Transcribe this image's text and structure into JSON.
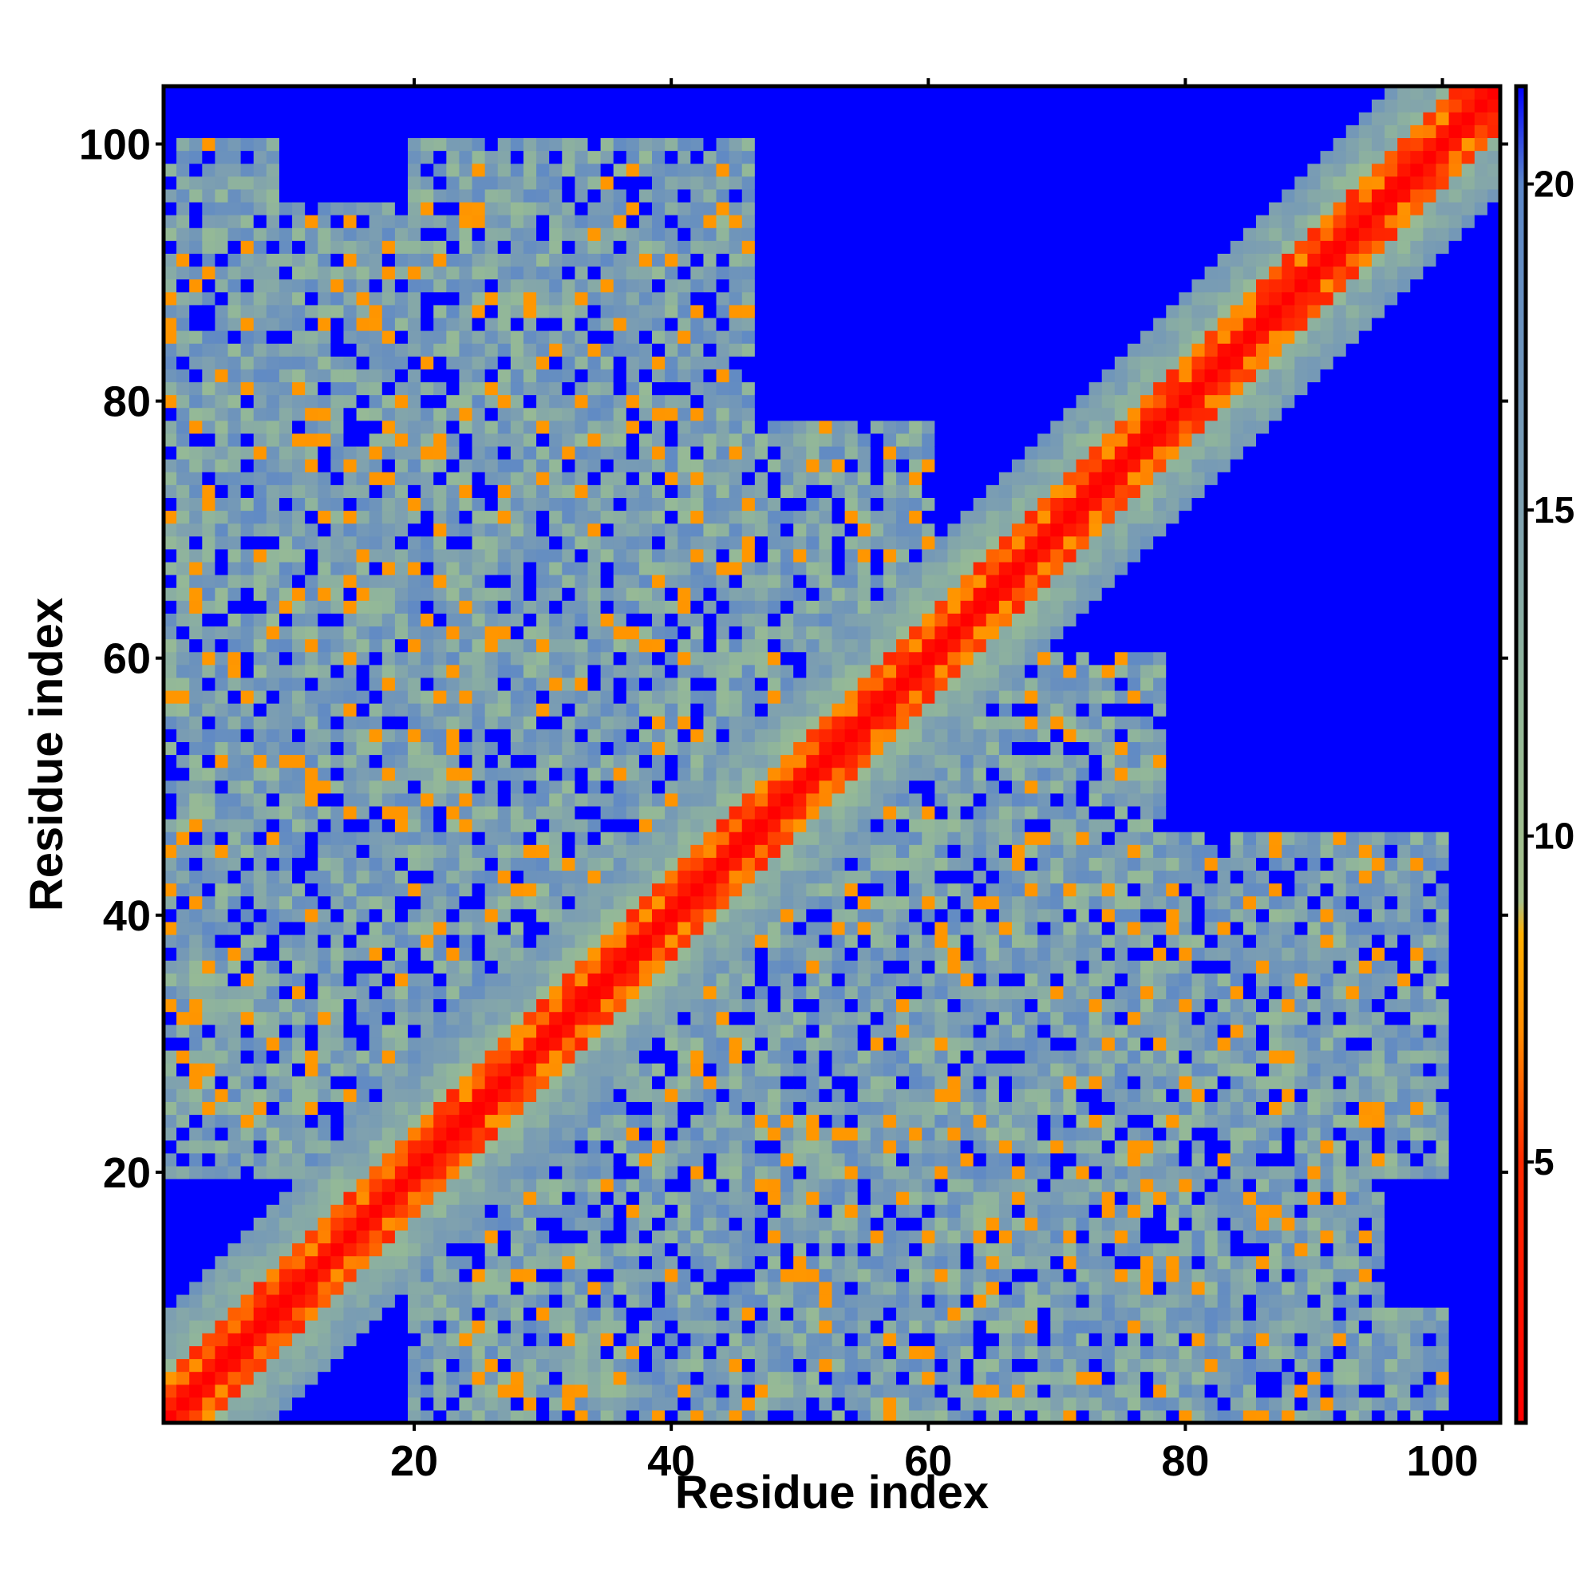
{
  "chart_data": {
    "type": "heatmap",
    "title": "",
    "xlabel": "Residue index",
    "ylabel": "Residue index",
    "n_residues": 104,
    "xlim": [
      0.5,
      104.5
    ],
    "ylim": [
      0.5,
      104.5
    ],
    "x_ticks": [
      20,
      40,
      60,
      80,
      100
    ],
    "y_ticks": [
      20,
      40,
      60,
      80,
      100
    ],
    "x_tick_labels": [
      "20",
      "40",
      "60",
      "80",
      "100"
    ],
    "y_tick_labels": [
      "20",
      "40",
      "60",
      "80",
      "100"
    ],
    "value_unit": "distance",
    "colorbar": {
      "range": [
        1,
        21.5
      ],
      "ticks": [
        5,
        10,
        15,
        20
      ],
      "tick_labels": [
        "5",
        "10",
        "15",
        "20"
      ],
      "stops": [
        {
          "value": 1,
          "color": "#ff0000"
        },
        {
          "value": 5,
          "color": "#ff2a00"
        },
        {
          "value": 7,
          "color": "#ff8c00"
        },
        {
          "value": 8.5,
          "color": "#ffb000"
        },
        {
          "value": 9,
          "color": "#a6c08a"
        },
        {
          "value": 12,
          "color": "#93b898"
        },
        {
          "value": 15,
          "color": "#7ea0b0"
        },
        {
          "value": 20,
          "color": "#5b86c8"
        },
        {
          "value": 21.5,
          "color": "#0000ff"
        }
      ]
    },
    "cutoff_color": "#0000ff",
    "contact_regions": [
      {
        "i": [
          1,
          104
        ],
        "j": [
          1,
          104
        ],
        "description": "main diagonal band"
      },
      {
        "i": [
          1,
          9
        ],
        "j": [
          35,
          100
        ]
      },
      {
        "i": [
          20,
          46
        ],
        "j": [
          1,
          100
        ]
      },
      {
        "i": [
          46,
          78
        ],
        "j": [
          1,
          60
        ]
      },
      {
        "i": [
          60,
          95
        ],
        "j": [
          1,
          40
        ]
      },
      {
        "i": [
          88,
          100
        ],
        "j": [
          25,
          40
        ]
      },
      {
        "i": [
          25,
          45
        ],
        "j": [
          85,
          100
        ]
      }
    ]
  }
}
